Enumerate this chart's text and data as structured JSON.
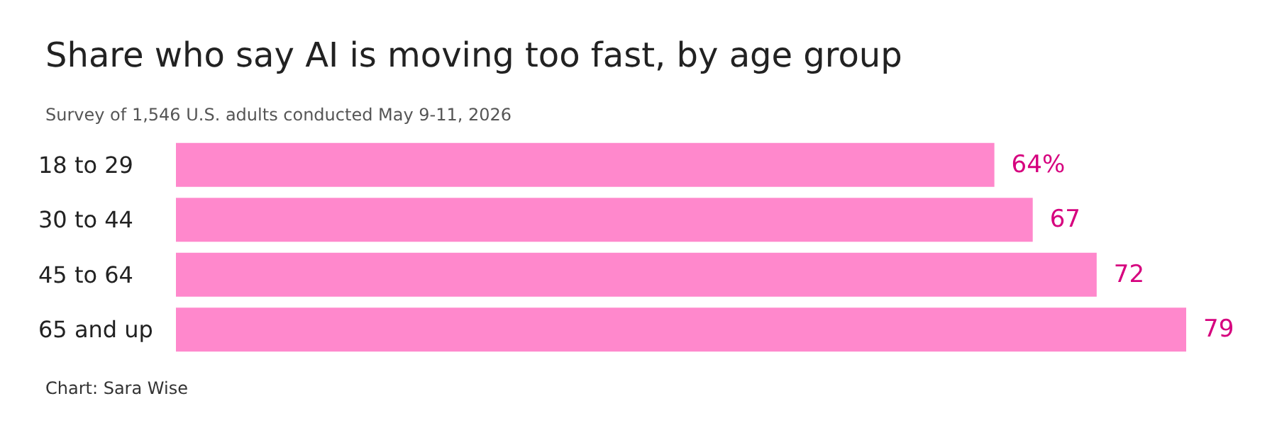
{
  "chart_data": {
    "type": "bar",
    "orientation": "horizontal",
    "title": "Share who say AI is moving too fast, by age group",
    "subtitle": "Survey of 1,546 U.S. adults conducted May 9-11, 2026",
    "categories": [
      "18 to 29",
      "30 to 44",
      "45 to 64",
      "65 and up"
    ],
    "values": [
      64,
      67,
      72,
      79
    ],
    "value_labels": [
      "64%",
      "67",
      "72",
      "79"
    ],
    "color": "#ff88cc",
    "annotations": [
      "Chart: Sara Wise"
    ]
  }
}
